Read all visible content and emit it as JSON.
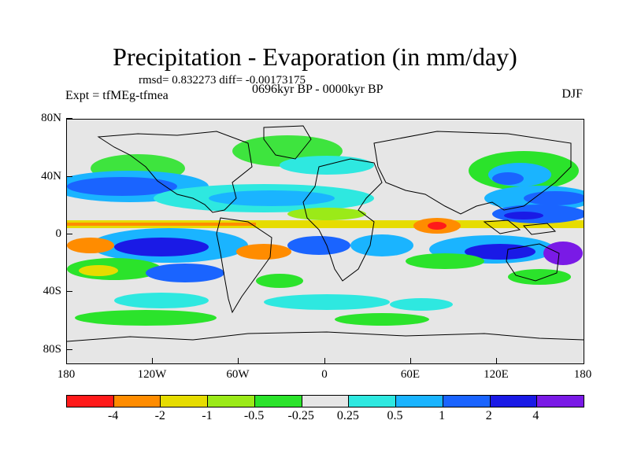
{
  "header": {
    "title": "Precipitation - Evaporation (in mm/day)",
    "stats": "rmsd= 0.832273 diff= -0.00173175",
    "period": "0696kyr BP - 0000kyr BP",
    "experiment": "Expt = tfMEg-tfmea",
    "season": "DJF"
  },
  "axes": {
    "y_labels": [
      "80N",
      "40N",
      "0",
      "40S",
      "80S"
    ],
    "x_labels": [
      "180",
      "120W",
      "60W",
      "0",
      "60E",
      "120E",
      "180"
    ]
  },
  "colorbar": {
    "colors": [
      "#ff1a1a",
      "#ff8c00",
      "#e6dc00",
      "#9bea18",
      "#2be32b",
      "#e6e6e6",
      "#2ee8e0",
      "#1ab4ff",
      "#1a64ff",
      "#1a1ae6",
      "#7a1ae6"
    ],
    "labels": [
      "-4",
      "-2",
      "-1",
      "-0.5",
      "-0.25",
      "0.25",
      "0.5",
      "1",
      "2",
      "4"
    ]
  }
}
